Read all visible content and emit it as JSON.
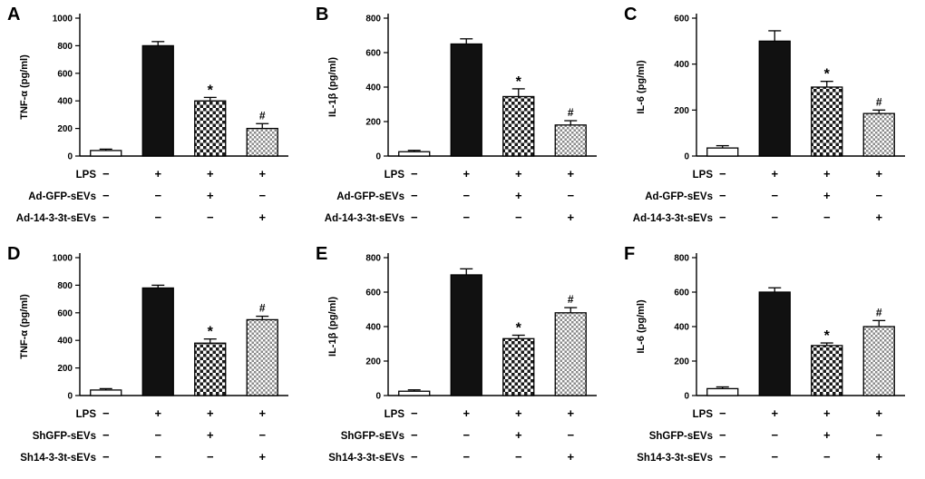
{
  "figure": {
    "background": "#ffffff",
    "axis_color": "#000000",
    "solid_fill": "#111111",
    "checker_dark": "#1a1a1a",
    "checker_light": "#8a8a8a",
    "bar_styles": [
      "open",
      "solid",
      "checker",
      "checker-fine"
    ]
  },
  "chart_data": [
    {
      "panel": "A",
      "type": "bar",
      "ylabel": "TNF-α  (pg/ml)",
      "ylim": [
        0,
        1000
      ],
      "yticks": [
        0,
        200,
        400,
        600,
        800,
        1000
      ],
      "categories": [
        "control",
        "LPS",
        "LPS+Ad-GFP-sEVs",
        "LPS+Ad-14-3-3t-sEVs"
      ],
      "values": [
        40,
        800,
        400,
        200
      ],
      "errors": [
        10,
        30,
        25,
        35
      ],
      "annotations": [
        "",
        "",
        "*",
        "#"
      ],
      "rows": [
        {
          "label": "LPS",
          "signs": [
            "−",
            "+",
            "+",
            "+"
          ]
        },
        {
          "label": "Ad-GFP-sEVs",
          "signs": [
            "−",
            "−",
            "+",
            "−"
          ]
        },
        {
          "label": "Ad-14-3-3t-sEVs",
          "signs": [
            "−",
            "−",
            "−",
            "+"
          ]
        }
      ]
    },
    {
      "panel": "B",
      "type": "bar",
      "ylabel": "IL-1β  (pg/ml)",
      "ylim": [
        0,
        800
      ],
      "yticks": [
        0,
        200,
        400,
        600,
        800
      ],
      "categories": [
        "control",
        "LPS",
        "LPS+Ad-GFP-sEVs",
        "LPS+Ad-14-3-3t-sEVs"
      ],
      "values": [
        25,
        650,
        345,
        180
      ],
      "errors": [
        8,
        30,
        45,
        25
      ],
      "annotations": [
        "",
        "",
        "*",
        "#"
      ],
      "rows": [
        {
          "label": "LPS",
          "signs": [
            "−",
            "+",
            "+",
            "+"
          ]
        },
        {
          "label": "Ad-GFP-sEVs",
          "signs": [
            "−",
            "−",
            "+",
            "−"
          ]
        },
        {
          "label": "Ad-14-3-3t-sEVs",
          "signs": [
            "−",
            "−",
            "−",
            "+"
          ]
        }
      ]
    },
    {
      "panel": "C",
      "type": "bar",
      "ylabel": "IL-6  (pg/ml)",
      "ylim": [
        0,
        600
      ],
      "yticks": [
        0,
        200,
        400,
        600
      ],
      "categories": [
        "control",
        "LPS",
        "LPS+Ad-GFP-sEVs",
        "LPS+Ad-14-3-3t-sEVs"
      ],
      "values": [
        35,
        500,
        300,
        185
      ],
      "errors": [
        10,
        45,
        25,
        15
      ],
      "annotations": [
        "",
        "",
        "*",
        "#"
      ],
      "rows": [
        {
          "label": "LPS",
          "signs": [
            "−",
            "+",
            "+",
            "+"
          ]
        },
        {
          "label": "Ad-GFP-sEVs",
          "signs": [
            "−",
            "−",
            "+",
            "−"
          ]
        },
        {
          "label": "Ad-14-3-3t-sEVs",
          "signs": [
            "−",
            "−",
            "−",
            "+"
          ]
        }
      ]
    },
    {
      "panel": "D",
      "type": "bar",
      "ylabel": "TNF-α  (pg/ml)",
      "ylim": [
        0,
        1000
      ],
      "yticks": [
        0,
        200,
        400,
        600,
        800,
        1000
      ],
      "categories": [
        "control",
        "LPS",
        "LPS+ShGFP-sEVs",
        "LPS+Sh14-3-3t-sEVs"
      ],
      "values": [
        40,
        780,
        380,
        550
      ],
      "errors": [
        10,
        20,
        30,
        25
      ],
      "annotations": [
        "",
        "",
        "*",
        "#"
      ],
      "rows": [
        {
          "label": "LPS",
          "signs": [
            "−",
            "+",
            "+",
            "+"
          ]
        },
        {
          "label": "ShGFP-sEVs",
          "signs": [
            "−",
            "−",
            "+",
            "−"
          ]
        },
        {
          "label": "Sh14-3-3t-sEVs",
          "signs": [
            "−",
            "−",
            "−",
            "+"
          ]
        }
      ]
    },
    {
      "panel": "E",
      "type": "bar",
      "ylabel": "IL-1β  (pg/ml)",
      "ylim": [
        0,
        800
      ],
      "yticks": [
        0,
        200,
        400,
        600,
        800
      ],
      "categories": [
        "control",
        "LPS",
        "LPS+ShGFP-sEVs",
        "LPS+Sh14-3-3t-sEVs"
      ],
      "values": [
        25,
        700,
        330,
        480
      ],
      "errors": [
        8,
        35,
        20,
        30
      ],
      "annotations": [
        "",
        "",
        "*",
        "#"
      ],
      "rows": [
        {
          "label": "LPS",
          "signs": [
            "−",
            "+",
            "+",
            "+"
          ]
        },
        {
          "label": "ShGFP-sEVs",
          "signs": [
            "−",
            "−",
            "+",
            "−"
          ]
        },
        {
          "label": "Sh14-3-3t-sEVs",
          "signs": [
            "−",
            "−",
            "−",
            "+"
          ]
        }
      ]
    },
    {
      "panel": "F",
      "type": "bar",
      "ylabel": "IL-6  (pg/ml)",
      "ylim": [
        0,
        800
      ],
      "yticks": [
        0,
        200,
        400,
        600,
        800
      ],
      "categories": [
        "control",
        "LPS",
        "LPS+ShGFP-sEVs",
        "LPS+Sh14-3-3t-sEVs"
      ],
      "values": [
        40,
        600,
        290,
        400
      ],
      "errors": [
        10,
        25,
        15,
        35
      ],
      "annotations": [
        "",
        "",
        "*",
        "#"
      ],
      "rows": [
        {
          "label": "LPS",
          "signs": [
            "−",
            "+",
            "+",
            "+"
          ]
        },
        {
          "label": "ShGFP-sEVs",
          "signs": [
            "−",
            "−",
            "+",
            "−"
          ]
        },
        {
          "label": "Sh14-3-3t-sEVs",
          "signs": [
            "−",
            "−",
            "−",
            "+"
          ]
        }
      ]
    }
  ]
}
